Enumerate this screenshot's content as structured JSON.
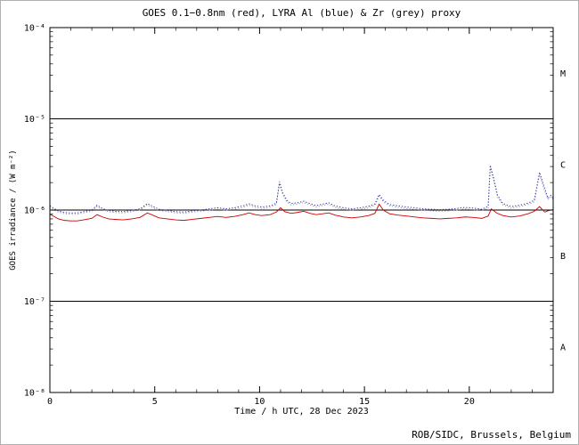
{
  "chart_data": {
    "type": "line",
    "title": "GOES 0.1−0.8nm (red), LYRA Al (blue) & Zr (grey) proxy",
    "xlabel": "Time / h UTC, 28 Dec 2023",
    "ylabel": "GOES irradiance / (W m⁻²)",
    "credit": "ROB/SIDC, Brussels, Belgium",
    "x_range": [
      0,
      24
    ],
    "x_major_ticks": [
      0,
      5,
      10,
      15,
      20
    ],
    "x_major_tick_labels": [
      "0",
      "5",
      "10",
      "15",
      "20"
    ],
    "x_minor_step": 1,
    "y_scale": "log",
    "y_range_exp": [
      -8,
      -4
    ],
    "y_ticks": [
      {
        "exp": -4,
        "label": "10⁻⁴"
      },
      {
        "exp": -5,
        "label": "10⁻⁵"
      },
      {
        "exp": -6,
        "label": "10⁻⁶"
      },
      {
        "exp": -7,
        "label": "10⁻⁷"
      },
      {
        "exp": -8,
        "label": "10⁻⁸"
      }
    ],
    "class_boundary_lines_exp": [
      -5,
      -6,
      -7
    ],
    "flare_class_labels": [
      {
        "label": "M",
        "exp": -4.5
      },
      {
        "label": "C",
        "exp": -5.5
      },
      {
        "label": "B",
        "exp": -6.5
      },
      {
        "label": "A",
        "exp": -7.5
      }
    ],
    "grid": false,
    "legend": "encoded in title colors",
    "series": [
      {
        "name": "LYRA Zr proxy",
        "color": "#9a9a9a",
        "style": "dotted",
        "unit": 1e-07,
        "points": [
          [
            0.0,
            10.8
          ],
          [
            0.2,
            10.0
          ],
          [
            0.4,
            9.5
          ],
          [
            0.7,
            9.1
          ],
          [
            1.0,
            9.0
          ],
          [
            1.3,
            9.0
          ],
          [
            1.6,
            9.3
          ],
          [
            2.0,
            9.7
          ],
          [
            2.25,
            10.9
          ],
          [
            2.5,
            10.1
          ],
          [
            2.8,
            9.6
          ],
          [
            3.1,
            9.4
          ],
          [
            3.5,
            9.3
          ],
          [
            3.9,
            9.6
          ],
          [
            4.3,
            10.0
          ],
          [
            4.65,
            11.4
          ],
          [
            4.9,
            10.6
          ],
          [
            5.2,
            9.9
          ],
          [
            5.6,
            9.6
          ],
          [
            6.0,
            9.3
          ],
          [
            6.4,
            9.2
          ],
          [
            6.8,
            9.5
          ],
          [
            7.2,
            9.7
          ],
          [
            7.6,
            10.0
          ],
          [
            8.0,
            10.2
          ],
          [
            8.4,
            10.0
          ],
          [
            8.8,
            10.2
          ],
          [
            9.2,
            10.7
          ],
          [
            9.5,
            11.3
          ],
          [
            9.8,
            10.7
          ],
          [
            10.1,
            10.4
          ],
          [
            10.5,
            10.7
          ],
          [
            10.8,
            11.5
          ],
          [
            10.95,
            19.5
          ],
          [
            11.1,
            14.9
          ],
          [
            11.3,
            12.3
          ],
          [
            11.5,
            11.4
          ],
          [
            11.8,
            11.6
          ],
          [
            12.1,
            12.1
          ],
          [
            12.4,
            11.4
          ],
          [
            12.7,
            10.8
          ],
          [
            13.0,
            11.2
          ],
          [
            13.3,
            11.6
          ],
          [
            13.6,
            10.7
          ],
          [
            14.0,
            10.2
          ],
          [
            14.4,
            10.0
          ],
          [
            14.8,
            10.2
          ],
          [
            15.2,
            10.6
          ],
          [
            15.5,
            11.3
          ],
          [
            15.7,
            14.2
          ],
          [
            15.9,
            12.3
          ],
          [
            16.2,
            11.1
          ],
          [
            16.6,
            10.7
          ],
          [
            17.0,
            10.4
          ],
          [
            17.4,
            10.2
          ],
          [
            17.8,
            10.0
          ],
          [
            18.2,
            9.8
          ],
          [
            18.6,
            9.7
          ],
          [
            19.0,
            9.8
          ],
          [
            19.4,
            10.0
          ],
          [
            19.8,
            10.3
          ],
          [
            20.2,
            10.1
          ],
          [
            20.6,
            9.8
          ],
          [
            20.9,
            10.6
          ],
          [
            21.0,
            29.0
          ],
          [
            21.15,
            21.5
          ],
          [
            21.35,
            13.8
          ],
          [
            21.6,
            11.4
          ],
          [
            22.0,
            10.5
          ],
          [
            22.4,
            10.9
          ],
          [
            22.8,
            11.5
          ],
          [
            23.1,
            12.3
          ],
          [
            23.35,
            24.5
          ],
          [
            23.55,
            17.5
          ],
          [
            23.75,
            13.0
          ],
          [
            23.9,
            13.9
          ],
          [
            24.0,
            13.0
          ]
        ]
      },
      {
        "name": "LYRA Al",
        "color": "#3333bb",
        "style": "dotted",
        "unit": 1e-07,
        "points": [
          [
            0.0,
            11.2
          ],
          [
            0.2,
            10.4
          ],
          [
            0.4,
            9.8
          ],
          [
            0.7,
            9.4
          ],
          [
            1.0,
            9.3
          ],
          [
            1.3,
            9.3
          ],
          [
            1.6,
            9.6
          ],
          [
            2.0,
            10.0
          ],
          [
            2.25,
            11.3
          ],
          [
            2.5,
            10.4
          ],
          [
            2.8,
            9.9
          ],
          [
            3.1,
            9.7
          ],
          [
            3.5,
            9.6
          ],
          [
            3.9,
            9.9
          ],
          [
            4.3,
            10.3
          ],
          [
            4.65,
            11.8
          ],
          [
            4.9,
            11.0
          ],
          [
            5.2,
            10.2
          ],
          [
            5.6,
            9.9
          ],
          [
            6.0,
            9.6
          ],
          [
            6.4,
            9.5
          ],
          [
            6.8,
            9.8
          ],
          [
            7.2,
            10.0
          ],
          [
            7.6,
            10.3
          ],
          [
            8.0,
            10.6
          ],
          [
            8.4,
            10.3
          ],
          [
            8.8,
            10.6
          ],
          [
            9.2,
            11.1
          ],
          [
            9.5,
            11.7
          ],
          [
            9.8,
            11.1
          ],
          [
            10.1,
            10.8
          ],
          [
            10.5,
            11.1
          ],
          [
            10.8,
            11.9
          ],
          [
            10.95,
            20.5
          ],
          [
            11.1,
            15.5
          ],
          [
            11.3,
            12.8
          ],
          [
            11.5,
            11.8
          ],
          [
            11.8,
            12.0
          ],
          [
            12.1,
            12.5
          ],
          [
            12.4,
            11.8
          ],
          [
            12.7,
            11.2
          ],
          [
            13.0,
            11.6
          ],
          [
            13.3,
            12.0
          ],
          [
            13.6,
            11.1
          ],
          [
            14.0,
            10.6
          ],
          [
            14.4,
            10.3
          ],
          [
            14.8,
            10.6
          ],
          [
            15.2,
            11.0
          ],
          [
            15.5,
            11.7
          ],
          [
            15.7,
            14.8
          ],
          [
            15.9,
            12.8
          ],
          [
            16.2,
            11.5
          ],
          [
            16.6,
            11.1
          ],
          [
            17.0,
            10.8
          ],
          [
            17.4,
            10.6
          ],
          [
            17.8,
            10.3
          ],
          [
            18.2,
            10.2
          ],
          [
            18.6,
            10.1
          ],
          [
            19.0,
            10.2
          ],
          [
            19.4,
            10.4
          ],
          [
            19.8,
            10.7
          ],
          [
            20.2,
            10.5
          ],
          [
            20.6,
            10.2
          ],
          [
            20.9,
            11.0
          ],
          [
            21.0,
            31.0
          ],
          [
            21.15,
            23.0
          ],
          [
            21.35,
            14.5
          ],
          [
            21.6,
            11.8
          ],
          [
            22.0,
            10.9
          ],
          [
            22.4,
            11.3
          ],
          [
            22.8,
            11.9
          ],
          [
            23.1,
            12.8
          ],
          [
            23.35,
            26.0
          ],
          [
            23.55,
            18.5
          ],
          [
            23.75,
            13.5
          ],
          [
            23.9,
            14.5
          ],
          [
            24.0,
            13.5
          ]
        ]
      },
      {
        "name": "GOES 0.1−0.8nm",
        "color": "#cc0000",
        "style": "solid",
        "unit": 1e-07,
        "points": [
          [
            0.0,
            9.0
          ],
          [
            0.2,
            8.5
          ],
          [
            0.4,
            8.0
          ],
          [
            0.7,
            7.7
          ],
          [
            1.0,
            7.6
          ],
          [
            1.3,
            7.6
          ],
          [
            1.6,
            7.8
          ],
          [
            2.0,
            8.1
          ],
          [
            2.25,
            8.9
          ],
          [
            2.5,
            8.4
          ],
          [
            2.8,
            8.0
          ],
          [
            3.1,
            7.9
          ],
          [
            3.5,
            7.8
          ],
          [
            3.9,
            8.0
          ],
          [
            4.3,
            8.3
          ],
          [
            4.65,
            9.3
          ],
          [
            4.9,
            8.8
          ],
          [
            5.2,
            8.2
          ],
          [
            5.6,
            8.0
          ],
          [
            6.0,
            7.8
          ],
          [
            6.4,
            7.7
          ],
          [
            6.8,
            7.9
          ],
          [
            7.2,
            8.1
          ],
          [
            7.6,
            8.3
          ],
          [
            8.0,
            8.5
          ],
          [
            8.4,
            8.3
          ],
          [
            8.8,
            8.5
          ],
          [
            9.2,
            8.9
          ],
          [
            9.5,
            9.3
          ],
          [
            9.8,
            8.9
          ],
          [
            10.1,
            8.7
          ],
          [
            10.5,
            8.9
          ],
          [
            10.8,
            9.5
          ],
          [
            11.0,
            10.6
          ],
          [
            11.2,
            9.6
          ],
          [
            11.5,
            9.2
          ],
          [
            11.8,
            9.4
          ],
          [
            12.1,
            9.7
          ],
          [
            12.4,
            9.2
          ],
          [
            12.7,
            8.9
          ],
          [
            13.0,
            9.1
          ],
          [
            13.3,
            9.3
          ],
          [
            13.6,
            8.8
          ],
          [
            14.0,
            8.4
          ],
          [
            14.4,
            8.2
          ],
          [
            14.8,
            8.4
          ],
          [
            15.2,
            8.7
          ],
          [
            15.5,
            9.2
          ],
          [
            15.7,
            11.6
          ],
          [
            15.9,
            10.0
          ],
          [
            16.2,
            9.1
          ],
          [
            16.6,
            8.8
          ],
          [
            17.0,
            8.6
          ],
          [
            17.4,
            8.4
          ],
          [
            17.8,
            8.2
          ],
          [
            18.2,
            8.1
          ],
          [
            18.6,
            8.0
          ],
          [
            19.0,
            8.1
          ],
          [
            19.4,
            8.2
          ],
          [
            19.8,
            8.4
          ],
          [
            20.2,
            8.3
          ],
          [
            20.6,
            8.1
          ],
          [
            20.9,
            8.6
          ],
          [
            21.05,
            10.3
          ],
          [
            21.3,
            9.3
          ],
          [
            21.6,
            8.7
          ],
          [
            22.0,
            8.4
          ],
          [
            22.4,
            8.6
          ],
          [
            22.8,
            9.1
          ],
          [
            23.1,
            9.7
          ],
          [
            23.35,
            10.9
          ],
          [
            23.6,
            9.5
          ],
          [
            23.8,
            9.9
          ],
          [
            24.0,
            10.1
          ]
        ]
      }
    ]
  }
}
